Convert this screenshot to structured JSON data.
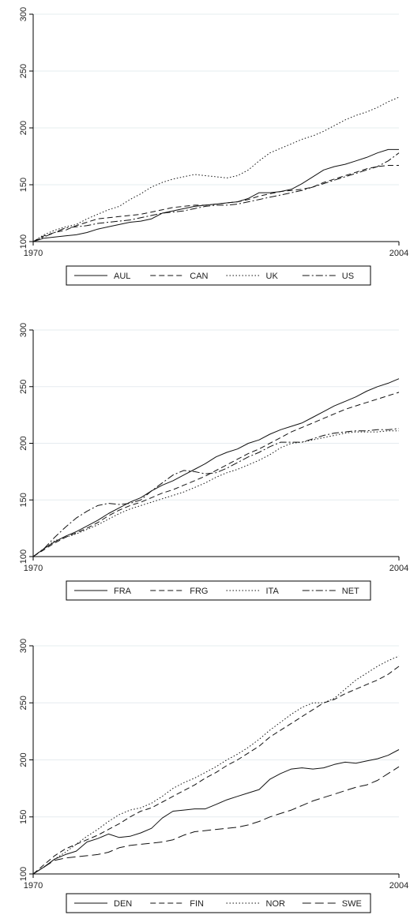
{
  "chart_data": [
    {
      "type": "line",
      "xlim": [
        1970,
        2004
      ],
      "ylim": [
        100,
        300
      ],
      "x_ticks": [
        "1970",
        "2004"
      ],
      "y_ticks": [
        "100",
        "150",
        "200",
        "250",
        "300"
      ],
      "grid": true,
      "legend_position": "bottom",
      "x": [
        1970,
        1971,
        1972,
        1973,
        1974,
        1975,
        1976,
        1977,
        1978,
        1979,
        1980,
        1981,
        1982,
        1983,
        1984,
        1985,
        1986,
        1987,
        1988,
        1989,
        1990,
        1991,
        1992,
        1993,
        1994,
        1995,
        1996,
        1997,
        1998,
        1999,
        2000,
        2001,
        2002,
        2003,
        2004
      ],
      "series": [
        {
          "name": "AUL",
          "dash": "solid",
          "values": [
            100,
            103,
            104,
            105,
            106,
            108,
            111,
            113,
            115,
            117,
            118,
            120,
            125,
            127,
            129,
            131,
            132,
            133,
            134,
            135,
            138,
            143,
            143,
            144,
            146,
            151,
            157,
            163,
            166,
            168,
            171,
            174,
            178,
            181,
            181
          ]
        },
        {
          "name": "CAN",
          "dash": "dashed",
          "values": [
            100,
            105,
            108,
            110,
            114,
            117,
            120,
            121,
            122,
            123,
            124,
            126,
            128,
            130,
            131,
            132,
            132,
            133,
            134,
            135,
            137,
            140,
            142,
            144,
            145,
            146,
            148,
            152,
            155,
            158,
            161,
            164,
            166,
            167,
            167
          ]
        },
        {
          "name": "UK",
          "dash": "dotted",
          "values": [
            100,
            106,
            110,
            113,
            115,
            120,
            124,
            128,
            131,
            137,
            142,
            148,
            152,
            155,
            157,
            159,
            158,
            157,
            156,
            158,
            163,
            171,
            178,
            182,
            186,
            190,
            193,
            197,
            202,
            207,
            211,
            214,
            218,
            223,
            227
          ]
        },
        {
          "name": "US",
          "dash": "dashdot",
          "values": [
            100,
            104,
            108,
            112,
            113,
            114,
            116,
            117,
            118,
            119,
            121,
            123,
            125,
            126,
            127,
            129,
            131,
            132,
            132,
            133,
            135,
            137,
            139,
            141,
            143,
            145,
            148,
            151,
            154,
            157,
            160,
            163,
            166,
            171,
            178
          ]
        }
      ]
    },
    {
      "type": "line",
      "xlim": [
        1970,
        2004
      ],
      "ylim": [
        100,
        300
      ],
      "x_ticks": [
        "1970",
        "2004"
      ],
      "y_ticks": [
        "100",
        "150",
        "200",
        "250",
        "300"
      ],
      "grid": true,
      "legend_position": "bottom",
      "x": [
        1970,
        1971,
        1972,
        1973,
        1974,
        1975,
        1976,
        1977,
        1978,
        1979,
        1980,
        1981,
        1982,
        1983,
        1984,
        1985,
        1986,
        1987,
        1988,
        1989,
        1990,
        1991,
        1992,
        1993,
        1994,
        1995,
        1996,
        1997,
        1998,
        1999,
        2000,
        2001,
        2002,
        2003,
        2004
      ],
      "series": [
        {
          "name": "FRA",
          "dash": "solid",
          "values": [
            100,
            107,
            113,
            118,
            122,
            127,
            132,
            138,
            143,
            148,
            152,
            158,
            163,
            167,
            172,
            177,
            182,
            188,
            192,
            195,
            200,
            203,
            208,
            212,
            215,
            218,
            223,
            228,
            233,
            237,
            241,
            246,
            250,
            253,
            257
          ]
        },
        {
          "name": "FRG",
          "dash": "dashed",
          "values": [
            100,
            106,
            112,
            117,
            121,
            125,
            130,
            136,
            141,
            145,
            148,
            152,
            156,
            159,
            163,
            167,
            171,
            176,
            181,
            186,
            191,
            195,
            200,
            205,
            210,
            214,
            218,
            222,
            226,
            230,
            233,
            236,
            239,
            242,
            245
          ]
        },
        {
          "name": "ITA",
          "dash": "dotted",
          "values": [
            100,
            107,
            114,
            117,
            120,
            124,
            128,
            133,
            138,
            142,
            145,
            148,
            151,
            154,
            157,
            161,
            165,
            170,
            174,
            177,
            181,
            185,
            190,
            196,
            200,
            201,
            203,
            205,
            207,
            209,
            210,
            210,
            210,
            211,
            211
          ]
        },
        {
          "name": "NET",
          "dash": "dashdot",
          "values": [
            100,
            107,
            117,
            126,
            134,
            140,
            145,
            147,
            146,
            147,
            150,
            158,
            165,
            172,
            176,
            175,
            173,
            174,
            178,
            183,
            188,
            192,
            197,
            201,
            201,
            201,
            204,
            207,
            209,
            210,
            211,
            211,
            212,
            212,
            213
          ]
        }
      ]
    },
    {
      "type": "line",
      "xlim": [
        1970,
        2004
      ],
      "ylim": [
        100,
        300
      ],
      "x_ticks": [
        "1970",
        "2004"
      ],
      "y_ticks": [
        "100",
        "150",
        "200",
        "250",
        "300"
      ],
      "grid": true,
      "legend_position": "bottom",
      "x": [
        1970,
        1971,
        1972,
        1973,
        1974,
        1975,
        1976,
        1977,
        1978,
        1979,
        1980,
        1981,
        1982,
        1983,
        1984,
        1985,
        1986,
        1987,
        1988,
        1989,
        1990,
        1991,
        1992,
        1993,
        1994,
        1995,
        1996,
        1997,
        1998,
        1999,
        2000,
        2001,
        2002,
        2003,
        2004
      ],
      "series": [
        {
          "name": "DEN",
          "dash": "solid",
          "values": [
            100,
            106,
            113,
            117,
            120,
            128,
            131,
            135,
            132,
            133,
            136,
            140,
            149,
            155,
            156,
            157,
            157,
            161,
            165,
            168,
            171,
            174,
            183,
            188,
            192,
            193,
            192,
            193,
            196,
            198,
            197,
            199,
            201,
            204,
            209
          ]
        },
        {
          "name": "FIN",
          "dash": "dashed",
          "values": [
            100,
            108,
            116,
            122,
            126,
            130,
            134,
            139,
            144,
            150,
            155,
            158,
            163,
            168,
            173,
            178,
            184,
            189,
            195,
            200,
            206,
            212,
            220,
            226,
            232,
            238,
            244,
            250,
            253,
            258,
            262,
            266,
            270,
            275,
            282
          ]
        },
        {
          "name": "NOR",
          "dash": "dotted",
          "values": [
            100,
            106,
            113,
            119,
            126,
            133,
            139,
            146,
            152,
            156,
            158,
            162,
            168,
            175,
            180,
            184,
            189,
            194,
            200,
            205,
            211,
            218,
            226,
            233,
            240,
            246,
            250,
            250,
            254,
            262,
            270,
            276,
            282,
            287,
            291
          ]
        },
        {
          "name": "SWE",
          "dash": "longdash",
          "values": [
            100,
            106,
            112,
            114,
            115,
            116,
            117,
            119,
            123,
            125,
            126,
            127,
            128,
            130,
            134,
            137,
            138,
            139,
            140,
            141,
            143,
            146,
            150,
            153,
            156,
            160,
            164,
            167,
            170,
            173,
            176,
            178,
            182,
            188,
            194
          ]
        }
      ]
    }
  ]
}
